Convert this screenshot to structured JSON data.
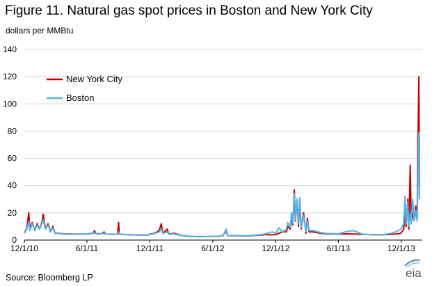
{
  "title": "Figure 11. Natural gas spot prices in Boston and New York City",
  "units": "dollars per MMBtu",
  "source": "Source:  Bloomberg LP",
  "logo_text": "eia",
  "chart_data": {
    "type": "line",
    "ylim": [
      0,
      140
    ],
    "yticks": [
      0,
      20,
      40,
      60,
      80,
      100,
      120,
      140
    ],
    "xlim": [
      "2010-12-01",
      "2014-01-31"
    ],
    "xticks": [
      {
        "date": "2010-12-01",
        "label": "12/1/10"
      },
      {
        "date": "2011-06-01",
        "label": "6/1/11"
      },
      {
        "date": "2011-12-01",
        "label": "12/1/11"
      },
      {
        "date": "2012-06-01",
        "label": "6/1/12"
      },
      {
        "date": "2012-12-01",
        "label": "12/1/12"
      },
      {
        "date": "2013-06-01",
        "label": "6/1/13"
      },
      {
        "date": "2013-12-01",
        "label": "12/1/13"
      }
    ],
    "grid": {
      "horizontal": true,
      "vertical": false
    },
    "legend_position": "top-left",
    "series": [
      {
        "name": "New York City",
        "color": "#C00000",
        "points": [
          [
            "2010-12-01",
            5
          ],
          [
            "2010-12-08",
            9
          ],
          [
            "2010-12-14",
            20
          ],
          [
            "2010-12-17",
            8
          ],
          [
            "2010-12-24",
            13
          ],
          [
            "2010-12-31",
            7
          ],
          [
            "2011-01-07",
            12
          ],
          [
            "2011-01-14",
            8
          ],
          [
            "2011-01-21",
            13
          ],
          [
            "2011-01-25",
            19
          ],
          [
            "2011-01-31",
            8
          ],
          [
            "2011-02-08",
            12
          ],
          [
            "2011-02-15",
            6
          ],
          [
            "2011-02-22",
            10
          ],
          [
            "2011-02-28",
            5
          ],
          [
            "2011-03-10",
            5
          ],
          [
            "2011-03-25",
            4.6
          ],
          [
            "2011-04-15",
            4.5
          ],
          [
            "2011-05-10",
            4.4
          ],
          [
            "2011-05-28",
            4.4
          ],
          [
            "2011-06-05",
            4.6
          ],
          [
            "2011-06-20",
            5
          ],
          [
            "2011-06-23",
            7
          ],
          [
            "2011-06-26",
            4.8
          ],
          [
            "2011-07-15",
            4.6
          ],
          [
            "2011-07-21",
            6
          ],
          [
            "2011-07-24",
            4.5
          ],
          [
            "2011-08-15",
            4.2
          ],
          [
            "2011-08-29",
            4.5
          ],
          [
            "2011-09-01",
            13
          ],
          [
            "2011-09-03",
            4.3
          ],
          [
            "2011-10-01",
            4
          ],
          [
            "2011-11-01",
            3.7
          ],
          [
            "2011-11-25",
            3.7
          ],
          [
            "2011-12-01",
            4.5
          ],
          [
            "2011-12-15",
            5
          ],
          [
            "2011-12-28",
            7
          ],
          [
            "2012-01-03",
            12
          ],
          [
            "2012-01-08",
            5
          ],
          [
            "2012-01-20",
            8
          ],
          [
            "2012-01-25",
            4.5
          ],
          [
            "2012-02-10",
            5
          ],
          [
            "2012-02-28",
            3.5
          ],
          [
            "2012-03-20",
            2.8
          ],
          [
            "2012-04-20",
            2.5
          ],
          [
            "2012-05-20",
            2.6
          ],
          [
            "2012-06-20",
            2.8
          ],
          [
            "2012-07-01",
            3.3
          ],
          [
            "2012-07-10",
            7
          ],
          [
            "2012-07-14",
            3.2
          ],
          [
            "2012-08-01",
            3.2
          ],
          [
            "2012-09-10",
            3
          ],
          [
            "2012-10-10",
            3.6
          ],
          [
            "2012-11-01",
            4
          ],
          [
            "2012-11-20",
            3.9
          ],
          [
            "2012-12-01",
            4
          ],
          [
            "2012-12-10",
            5
          ],
          [
            "2012-12-20",
            6
          ],
          [
            "2013-01-01",
            6
          ],
          [
            "2013-01-05",
            10
          ],
          [
            "2013-01-12",
            8
          ],
          [
            "2013-01-16",
            16
          ],
          [
            "2013-01-20",
            11
          ],
          [
            "2013-01-24",
            37
          ],
          [
            "2013-01-27",
            14
          ],
          [
            "2013-02-01",
            30
          ],
          [
            "2013-02-05",
            10
          ],
          [
            "2013-02-09",
            28
          ],
          [
            "2013-02-13",
            8
          ],
          [
            "2013-02-20",
            20
          ],
          [
            "2013-02-27",
            5
          ],
          [
            "2013-03-03",
            16
          ],
          [
            "2013-03-08",
            6
          ],
          [
            "2013-03-20",
            6
          ],
          [
            "2013-04-10",
            5
          ],
          [
            "2013-05-01",
            4.5
          ],
          [
            "2013-06-01",
            4.5
          ],
          [
            "2013-06-20",
            4.6
          ],
          [
            "2013-07-15",
            4.5
          ],
          [
            "2013-08-10",
            4.2
          ],
          [
            "2013-09-10",
            4
          ],
          [
            "2013-10-10",
            4
          ],
          [
            "2013-11-01",
            4.2
          ],
          [
            "2013-11-15",
            4.5
          ],
          [
            "2013-11-30",
            5
          ],
          [
            "2013-12-08",
            8
          ],
          [
            "2013-12-12",
            20
          ],
          [
            "2013-12-15",
            10
          ],
          [
            "2013-12-20",
            30
          ],
          [
            "2013-12-23",
            8
          ],
          [
            "2013-12-27",
            55
          ],
          [
            "2013-12-30",
            12
          ],
          [
            "2014-01-03",
            20
          ],
          [
            "2014-01-08",
            14
          ],
          [
            "2014-01-12",
            25
          ],
          [
            "2014-01-16",
            15
          ],
          [
            "2014-01-19",
            80
          ],
          [
            "2014-01-21",
            120
          ],
          [
            "2014-01-23",
            40
          ]
        ]
      },
      {
        "name": "Boston",
        "color": "#4FB3E8",
        "points": [
          [
            "2010-12-01",
            5
          ],
          [
            "2010-12-08",
            8
          ],
          [
            "2010-12-14",
            14
          ],
          [
            "2010-12-17",
            7
          ],
          [
            "2010-12-24",
            12
          ],
          [
            "2010-12-31",
            7
          ],
          [
            "2011-01-07",
            11
          ],
          [
            "2011-01-14",
            8
          ],
          [
            "2011-01-21",
            12
          ],
          [
            "2011-01-25",
            15
          ],
          [
            "2011-01-31",
            8
          ],
          [
            "2011-02-08",
            11
          ],
          [
            "2011-02-15",
            6
          ],
          [
            "2011-02-22",
            9
          ],
          [
            "2011-02-28",
            5
          ],
          [
            "2011-03-10",
            4.8
          ],
          [
            "2011-03-25",
            4.5
          ],
          [
            "2011-04-15",
            4.4
          ],
          [
            "2011-05-10",
            4.3
          ],
          [
            "2011-05-28",
            4.3
          ],
          [
            "2011-06-05",
            4.5
          ],
          [
            "2011-06-20",
            4.8
          ],
          [
            "2011-06-23",
            5.5
          ],
          [
            "2011-06-26",
            4.6
          ],
          [
            "2011-07-15",
            4.5
          ],
          [
            "2011-07-21",
            5
          ],
          [
            "2011-07-24",
            4.4
          ],
          [
            "2011-08-15",
            4.2
          ],
          [
            "2011-08-29",
            4.4
          ],
          [
            "2011-09-01",
            6
          ],
          [
            "2011-09-03",
            4.2
          ],
          [
            "2011-10-01",
            4
          ],
          [
            "2011-11-01",
            3.7
          ],
          [
            "2011-11-25",
            3.7
          ],
          [
            "2011-12-01",
            4.3
          ],
          [
            "2011-12-15",
            4.8
          ],
          [
            "2011-12-28",
            6
          ],
          [
            "2012-01-03",
            8
          ],
          [
            "2012-01-08",
            5
          ],
          [
            "2012-01-20",
            6
          ],
          [
            "2012-01-25",
            4.4
          ],
          [
            "2012-02-10",
            4.5
          ],
          [
            "2012-02-28",
            3.4
          ],
          [
            "2012-03-20",
            2.7
          ],
          [
            "2012-04-20",
            2.5
          ],
          [
            "2012-05-20",
            2.6
          ],
          [
            "2012-06-20",
            2.9
          ],
          [
            "2012-07-01",
            3.4
          ],
          [
            "2012-07-10",
            8
          ],
          [
            "2012-07-14",
            3.3
          ],
          [
            "2012-08-01",
            3.3
          ],
          [
            "2012-09-10",
            3.1
          ],
          [
            "2012-10-10",
            3.8
          ],
          [
            "2012-11-01",
            4.5
          ],
          [
            "2012-11-20",
            6
          ],
          [
            "2012-12-01",
            5
          ],
          [
            "2012-12-10",
            9
          ],
          [
            "2012-12-20",
            6
          ],
          [
            "2013-01-01",
            8
          ],
          [
            "2013-01-05",
            13
          ],
          [
            "2013-01-12",
            9
          ],
          [
            "2013-01-16",
            20
          ],
          [
            "2013-01-20",
            12
          ],
          [
            "2013-01-24",
            34
          ],
          [
            "2013-01-27",
            15
          ],
          [
            "2013-02-01",
            30
          ],
          [
            "2013-02-05",
            12
          ],
          [
            "2013-02-09",
            31
          ],
          [
            "2013-02-13",
            9
          ],
          [
            "2013-02-20",
            18
          ],
          [
            "2013-02-27",
            6
          ],
          [
            "2013-03-03",
            14
          ],
          [
            "2013-03-08",
            7
          ],
          [
            "2013-03-20",
            7
          ],
          [
            "2013-04-10",
            5.5
          ],
          [
            "2013-05-01",
            4.8
          ],
          [
            "2013-06-01",
            4.6
          ],
          [
            "2013-06-20",
            6
          ],
          [
            "2013-07-15",
            7
          ],
          [
            "2013-08-10",
            4.3
          ],
          [
            "2013-09-10",
            4
          ],
          [
            "2013-10-10",
            4
          ],
          [
            "2013-11-01",
            5
          ],
          [
            "2013-11-15",
            6
          ],
          [
            "2013-11-30",
            8
          ],
          [
            "2013-12-08",
            12
          ],
          [
            "2013-12-12",
            32
          ],
          [
            "2013-12-15",
            12
          ],
          [
            "2013-12-20",
            28
          ],
          [
            "2013-12-23",
            10
          ],
          [
            "2013-12-27",
            20
          ],
          [
            "2013-12-30",
            12
          ],
          [
            "2014-01-03",
            30
          ],
          [
            "2014-01-08",
            14
          ],
          [
            "2014-01-12",
            22
          ],
          [
            "2014-01-16",
            14
          ],
          [
            "2014-01-19",
            50
          ],
          [
            "2014-01-21",
            79
          ],
          [
            "2014-01-23",
            30
          ]
        ]
      }
    ]
  }
}
